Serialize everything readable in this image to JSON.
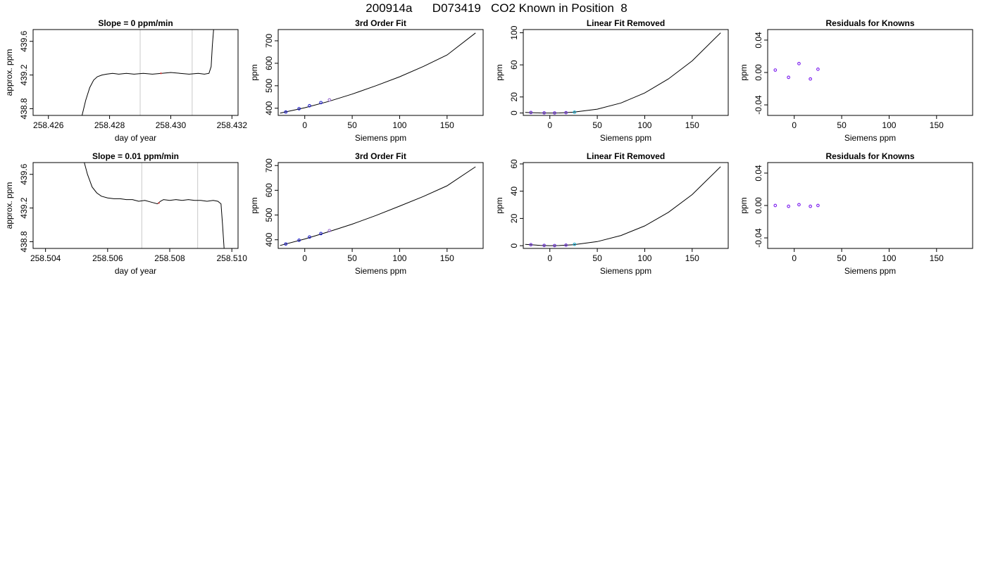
{
  "page": {
    "title": "200914a      D073419   CO2 Known in Position  8"
  },
  "chart_data": [
    {
      "type": "line",
      "title": "Slope =  0  ppm/min",
      "xlabel": "day of year",
      "ylabel": "approx. ppm",
      "xlim": [
        258.4255,
        258.4322
      ],
      "ylim": [
        438.72,
        439.74
      ],
      "x_ticks": [
        258.426,
        258.428,
        258.43,
        258.432
      ],
      "x_tick_labels": [
        "258.426",
        "258.428",
        "258.430",
        "258.432"
      ],
      "y_ticks": [
        438.8,
        439.2,
        439.6
      ],
      "y_tick_labels": [
        "438.8",
        "439.2",
        "439.6"
      ],
      "vlines": [
        258.429,
        258.4307
      ],
      "vline_color": "#c8c8c8",
      "line_color": "#000000",
      "marker_color": "#d63a3a",
      "series": [
        {
          "x": [
            258.4271,
            258.42722,
            258.42735,
            258.42748,
            258.4276,
            258.42775,
            258.4279,
            258.4281,
            258.4283,
            258.42855,
            258.4288,
            258.4291,
            258.4294,
            258.4297,
            258.43,
            258.4303,
            258.4306,
            258.4309,
            258.4311,
            258.43125,
            258.43132,
            258.43136,
            258.4314
          ],
          "y": [
            438.72,
            438.9,
            439.05,
            439.14,
            439.18,
            439.2,
            439.21,
            439.22,
            439.21,
            439.22,
            439.21,
            439.22,
            439.21,
            439.22,
            439.23,
            439.22,
            439.21,
            439.22,
            439.21,
            439.22,
            439.3,
            439.55,
            439.74
          ],
          "marker_x": [
            258.42968
          ],
          "marker_y": [
            439.22
          ]
        }
      ]
    },
    {
      "type": "line",
      "title": "3rd Order Fit",
      "xlabel": "Siemens ppm",
      "ylabel": "ppm",
      "xlim": [
        -28,
        188
      ],
      "ylim": [
        368,
        750
      ],
      "x_ticks": [
        0,
        50,
        100,
        150
      ],
      "x_tick_labels": [
        "0",
        "50",
        "100",
        "150"
      ],
      "y_ticks": [
        400,
        500,
        600,
        700
      ],
      "y_tick_labels": [
        "400",
        "500",
        "600",
        "700"
      ],
      "curve_color": "#000000",
      "curve": {
        "x": [
          -26,
          0,
          25,
          50,
          75,
          100,
          125,
          150,
          180
        ],
        "y": [
          378,
          402,
          430,
          463,
          500,
          540,
          586,
          637,
          735
        ]
      },
      "points": {
        "x": [
          -20,
          -6,
          5,
          17,
          26
        ],
        "y": [
          383,
          398,
          411,
          425,
          437
        ],
        "colors": [
          "#2020cc",
          "#2020cc",
          "#2020cc",
          "#2020cc",
          "#9a6ad0"
        ]
      }
    },
    {
      "type": "line",
      "title": "Linear Fit Removed",
      "xlabel": "Siemens ppm",
      "ylabel": "ppm",
      "xlim": [
        -28,
        188
      ],
      "ylim": [
        -3,
        104
      ],
      "x_ticks": [
        0,
        50,
        100,
        150
      ],
      "x_tick_labels": [
        "0",
        "50",
        "100",
        "150"
      ],
      "y_ticks": [
        0,
        20,
        60,
        100
      ],
      "y_tick_labels": [
        "0",
        "20",
        "60",
        "100"
      ],
      "curve_color": "#000000",
      "curve": {
        "x": [
          -26,
          -10,
          0,
          10,
          25,
          50,
          75,
          100,
          125,
          150,
          180
        ],
        "y": [
          0.8,
          0.1,
          0.0,
          0.1,
          1.0,
          4.8,
          12.5,
          25.0,
          42.5,
          65.0,
          100.0
        ]
      },
      "points": {
        "x": [
          -20,
          -6,
          5,
          17,
          26
        ],
        "y": [
          0.6,
          0.2,
          0.1,
          0.4,
          1.0
        ],
        "colors": [
          "#6a2ad8",
          "#6a2ad8",
          "#6a2ad8",
          "#6a2ad8",
          "#1aa8c8"
        ]
      }
    },
    {
      "type": "scatter",
      "title": "Residuals for Knowns",
      "xlabel": "Siemens ppm",
      "ylabel": "ppm",
      "xlim": [
        -28,
        188
      ],
      "ylim": [
        -0.053,
        0.053
      ],
      "x_ticks": [
        0,
        50,
        100,
        150
      ],
      "x_tick_labels": [
        "0",
        "50",
        "100",
        "150"
      ],
      "y_ticks": [
        -0.04,
        0.0,
        0.04
      ],
      "y_tick_labels": [
        "-0.04",
        "0.00",
        "0.04"
      ],
      "points": {
        "x": [
          -20,
          -6,
          5,
          17,
          25
        ],
        "y": [
          0.003,
          -0.006,
          0.011,
          -0.008,
          0.004
        ],
        "colors": [
          "#7a1aee",
          "#7a1aee",
          "#7a1aee",
          "#7a1aee",
          "#7a1aee"
        ]
      }
    },
    {
      "type": "line",
      "title": "Slope =  0.01  ppm/min",
      "xlabel": "day of year",
      "ylabel": "approx. ppm",
      "xlim": [
        258.5036,
        258.5102
      ],
      "ylim": [
        438.72,
        439.74
      ],
      "x_ticks": [
        258.504,
        258.506,
        258.508,
        258.51
      ],
      "x_tick_labels": [
        "258.504",
        "258.506",
        "258.508",
        "258.510"
      ],
      "y_ticks": [
        438.8,
        439.2,
        439.6
      ],
      "y_tick_labels": [
        "438.8",
        "439.2",
        "439.6"
      ],
      "vlines": [
        258.5071,
        258.5089
      ],
      "vline_color": "#c8c8c8",
      "line_color": "#000000",
      "marker_color": "#d63a3a",
      "series": [
        {
          "x": [
            258.50525,
            258.50535,
            258.5055,
            258.50565,
            258.5058,
            258.506,
            258.5062,
            258.5064,
            258.5066,
            258.5068,
            258.507,
            258.5072,
            258.5074,
            258.5076,
            258.5077,
            258.5078,
            258.508,
            258.5082,
            258.5084,
            258.5086,
            258.5088,
            258.509,
            258.5092,
            258.5094,
            258.50955,
            258.50965,
            258.5097,
            258.50975
          ],
          "y": [
            439.74,
            439.6,
            439.45,
            439.38,
            439.34,
            439.32,
            439.31,
            439.31,
            439.3,
            439.3,
            439.28,
            439.29,
            439.27,
            439.25,
            439.28,
            439.3,
            439.29,
            439.3,
            439.29,
            439.3,
            439.29,
            439.29,
            439.28,
            439.29,
            439.28,
            439.25,
            439.0,
            438.72
          ],
          "marker_x": [
            258.50765
          ],
          "marker_y": [
            439.26
          ]
        }
      ]
    },
    {
      "type": "line",
      "title": "3rd Order Fit",
      "xlabel": "Siemens ppm",
      "ylabel": "ppm",
      "xlim": [
        -28,
        188
      ],
      "ylim": [
        365,
        712
      ],
      "x_ticks": [
        0,
        50,
        100,
        150
      ],
      "x_tick_labels": [
        "0",
        "50",
        "100",
        "150"
      ],
      "y_ticks": [
        400,
        500,
        600,
        700
      ],
      "y_tick_labels": [
        "400",
        "500",
        "600",
        "700"
      ],
      "curve_color": "#000000",
      "curve": {
        "x": [
          -26,
          0,
          25,
          50,
          75,
          100,
          125,
          150,
          180
        ],
        "y": [
          377,
          403,
          432,
          463,
          498,
          536,
          575,
          618,
          695
        ]
      },
      "points": {
        "x": [
          -20,
          -6,
          5,
          17,
          26
        ],
        "y": [
          383,
          398,
          411,
          425,
          437
        ],
        "colors": [
          "#2020cc",
          "#2020cc",
          "#2020cc",
          "#2020cc",
          "#9a6ad0"
        ]
      }
    },
    {
      "type": "line",
      "title": "Linear Fit Removed",
      "xlabel": "Siemens ppm",
      "ylabel": "ppm",
      "xlim": [
        -28,
        188
      ],
      "ylim": [
        -2,
        61
      ],
      "x_ticks": [
        0,
        50,
        100,
        150
      ],
      "x_tick_labels": [
        "0",
        "50",
        "100",
        "150"
      ],
      "y_ticks": [
        0,
        20,
        40,
        60
      ],
      "y_tick_labels": [
        "0",
        "20",
        "40",
        "60"
      ],
      "curve_color": "#000000",
      "curve": {
        "x": [
          -26,
          -10,
          0,
          10,
          25,
          50,
          75,
          100,
          125,
          150,
          180
        ],
        "y": [
          1.0,
          0.2,
          0.0,
          0.1,
          0.7,
          3.0,
          7.5,
          14.5,
          24.5,
          37.5,
          58.0
        ]
      },
      "points": {
        "x": [
          -20,
          -6,
          5,
          17,
          26
        ],
        "y": [
          0.7,
          0.2,
          0.1,
          0.4,
          1.0
        ],
        "colors": [
          "#6a2ad8",
          "#6a2ad8",
          "#6a2ad8",
          "#6a2ad8",
          "#1aa8c8"
        ]
      }
    },
    {
      "type": "scatter",
      "title": "Residuals for Knowns",
      "xlabel": "Siemens ppm",
      "ylabel": "ppm",
      "xlim": [
        -28,
        188
      ],
      "ylim": [
        -0.053,
        0.053
      ],
      "x_ticks": [
        0,
        50,
        100,
        150
      ],
      "x_tick_labels": [
        "0",
        "50",
        "100",
        "150"
      ],
      "y_ticks": [
        -0.04,
        0.0,
        0.04
      ],
      "y_tick_labels": [
        "-0.04",
        "0.00",
        "0.04"
      ],
      "points": {
        "x": [
          -20,
          -6,
          5,
          17,
          25
        ],
        "y": [
          0.0,
          -0.001,
          0.001,
          -0.001,
          0.0
        ],
        "colors": [
          "#7a1aee",
          "#7a1aee",
          "#7a1aee",
          "#7a1aee",
          "#7a1aee"
        ]
      }
    }
  ]
}
